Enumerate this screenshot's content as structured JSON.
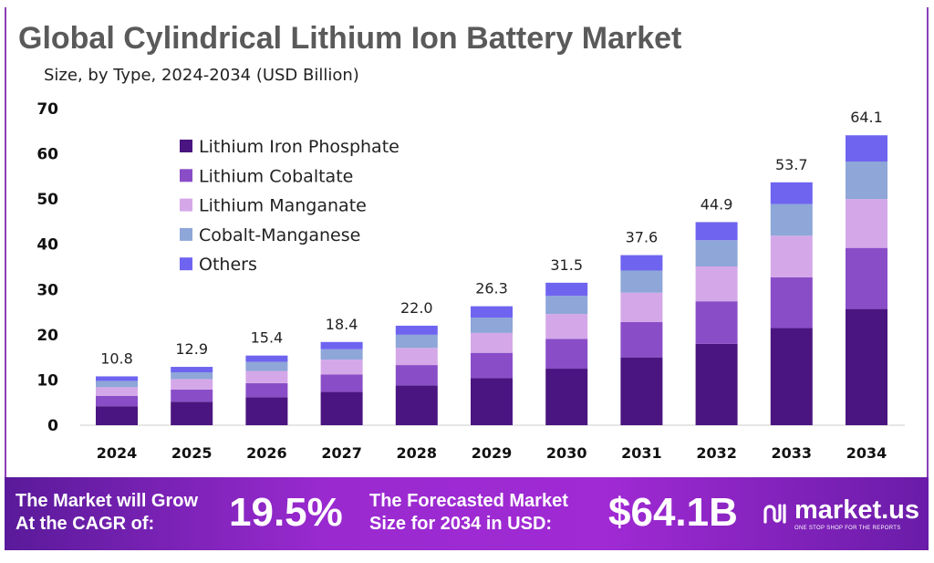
{
  "title": "Global Cylindrical Lithium Ion Battery Market",
  "subtitle": "Size, by Type, 2024-2034 (USD Billion)",
  "chart_data": {
    "type": "bar",
    "stacked": true,
    "categories": [
      "2024",
      "2025",
      "2026",
      "2027",
      "2028",
      "2029",
      "2030",
      "2031",
      "2032",
      "2033",
      "2034"
    ],
    "series": [
      {
        "name": "Lithium Iron Phosphate",
        "color": "#4a1580",
        "values": [
          4.2,
          5.2,
          6.2,
          7.4,
          8.8,
          10.4,
          12.5,
          15.0,
          18.0,
          21.5,
          25.7
        ]
      },
      {
        "name": "Lithium Cobaltate",
        "color": "#8a4dc8",
        "values": [
          2.3,
          2.7,
          3.1,
          3.8,
          4.5,
          5.6,
          6.6,
          7.8,
          9.4,
          11.2,
          13.5
        ]
      },
      {
        "name": "Lithium Manganate",
        "color": "#d4a8e8",
        "values": [
          1.9,
          2.3,
          2.7,
          3.3,
          3.8,
          4.4,
          5.5,
          6.5,
          7.7,
          9.2,
          10.8
        ]
      },
      {
        "name": "Cobalt-Manganese",
        "color": "#8ea6d8",
        "values": [
          1.4,
          1.5,
          2.0,
          2.3,
          2.9,
          3.4,
          4.0,
          4.9,
          5.8,
          7.0,
          8.3
        ]
      },
      {
        "name": "Others",
        "color": "#6e64f0",
        "values": [
          1.0,
          1.2,
          1.4,
          1.6,
          2.0,
          2.5,
          2.9,
          3.4,
          4.0,
          4.8,
          5.8
        ]
      }
    ],
    "totals": [
      "10.8",
      "12.9",
      "15.4",
      "18.4",
      "22.0",
      "26.3",
      "31.5",
      "37.6",
      "44.9",
      "53.7",
      "64.1"
    ],
    "yticks": [
      "0",
      "10",
      "20",
      "30",
      "40",
      "50",
      "60",
      "70"
    ],
    "ylim": [
      0,
      70
    ],
    "xlabel": "",
    "ylabel": "",
    "grid": false,
    "legend_position": "top-left"
  },
  "banner": {
    "cagr_label_1": "The Market will Grow",
    "cagr_label_2": "At the CAGR of:",
    "cagr_value": "19.5%",
    "forecast_label_1": "The Forecasted Market",
    "forecast_label_2": "Size for 2034 in USD:",
    "forecast_value": "$64.1B",
    "logo_name": "market.us",
    "logo_tagline": "ONE STOP SHOP FOR THE REPORTS"
  }
}
